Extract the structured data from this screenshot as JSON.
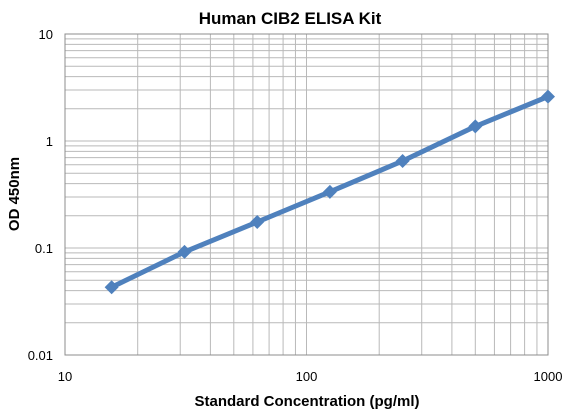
{
  "chart_data": {
    "type": "line",
    "title": "Human CIB2 ELISA Kit",
    "xlabel": "Standard Concentration (pg/ml)",
    "ylabel": "OD 450nm",
    "x_scale": "log",
    "y_scale": "log",
    "xlim": [
      10,
      1000
    ],
    "ylim": [
      0.01,
      10
    ],
    "x_ticks": [
      "10",
      "100",
      "1000"
    ],
    "y_ticks": [
      "10",
      "1",
      "0.1",
      "0.01"
    ],
    "grid": true,
    "legend": "none",
    "series": [
      {
        "color": "#4f81bd",
        "x": [
          15.6,
          31.25,
          62.5,
          125,
          250,
          500,
          1000
        ],
        "y": [
          0.043,
          0.092,
          0.175,
          0.335,
          0.65,
          1.37,
          2.6
        ]
      }
    ]
  }
}
